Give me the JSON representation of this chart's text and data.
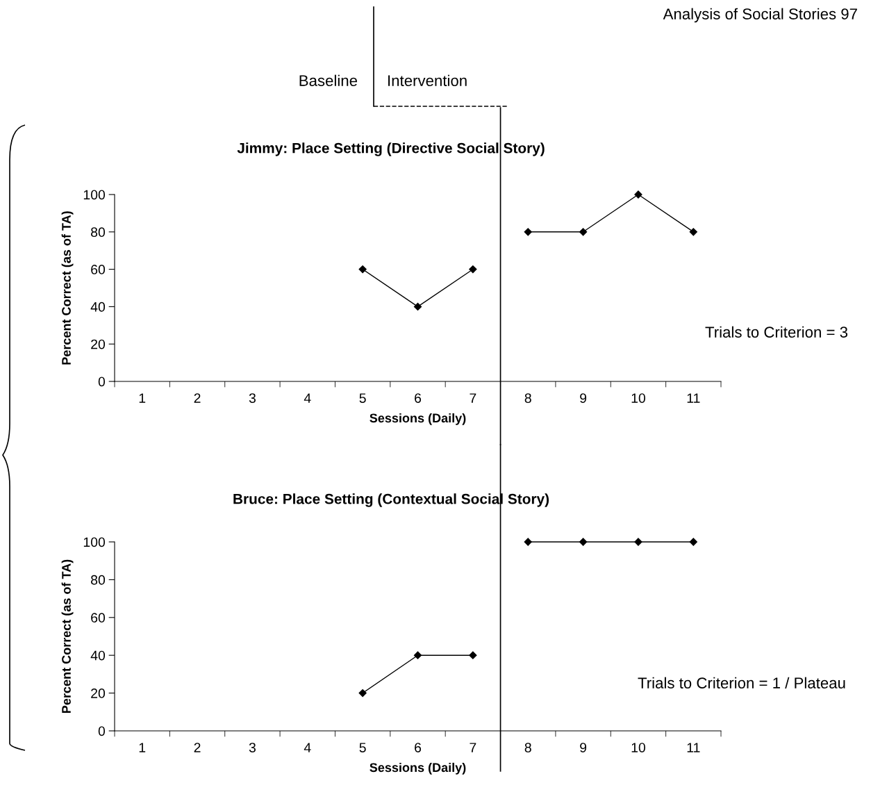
{
  "chart_data": [
    {
      "type": "line",
      "title": "Jimmy: Place Setting (Directive Social Story)",
      "xlabel": "Sessions (Daily)",
      "ylabel": "Percent Correct (as of TA)",
      "series": [
        {
          "color": "#000000",
          "x": [
            5,
            6,
            7
          ],
          "values": [
            60,
            40,
            60
          ]
        },
        {
          "color": "#000000",
          "x": [
            8,
            9,
            10,
            11
          ],
          "values": [
            80,
            80,
            100,
            80
          ]
        }
      ],
      "xlim": [
        0.5,
        11.5
      ],
      "xticks": [
        1,
        2,
        3,
        4,
        5,
        6,
        7,
        8,
        9,
        10,
        11
      ],
      "ylim": [
        0,
        100
      ],
      "yticks": [
        0,
        20,
        40,
        60,
        80,
        100
      ],
      "marker": "diamond",
      "line_style": "solid",
      "ref_lines": [
        {
          "axis": "x",
          "value": 7.5,
          "label": null,
          "color": "#000000"
        }
      ],
      "annotations": [
        "Analysis of Social Stories 97",
        "Baseline",
        "Intervention",
        "Trials to Criterion = 3"
      ]
    },
    {
      "type": "line",
      "title": "Bruce: Place Setting (Contextual Social Story)",
      "xlabel": "Sessions (Daily)",
      "ylabel": "Percent Correct (as of TA)",
      "series": [
        {
          "color": "#000000",
          "x": [
            5,
            6,
            7
          ],
          "values": [
            20,
            40,
            40
          ]
        },
        {
          "color": "#000000",
          "x": [
            8,
            9,
            10,
            11
          ],
          "values": [
            100,
            100,
            100,
            100
          ]
        }
      ],
      "xlim": [
        0.5,
        11.5
      ],
      "xticks": [
        1,
        2,
        3,
        4,
        5,
        6,
        7,
        8,
        9,
        10,
        11
      ],
      "ylim": [
        0,
        100
      ],
      "yticks": [
        0,
        20,
        40,
        60,
        80,
        100
      ],
      "marker": "diamond",
      "line_style": "solid",
      "ref_lines": [
        {
          "axis": "x",
          "value": 7.5,
          "label": null,
          "color": "#000000"
        }
      ],
      "annotations": [
        "Trials to Criterion = 1 / Plateau"
      ]
    }
  ]
}
